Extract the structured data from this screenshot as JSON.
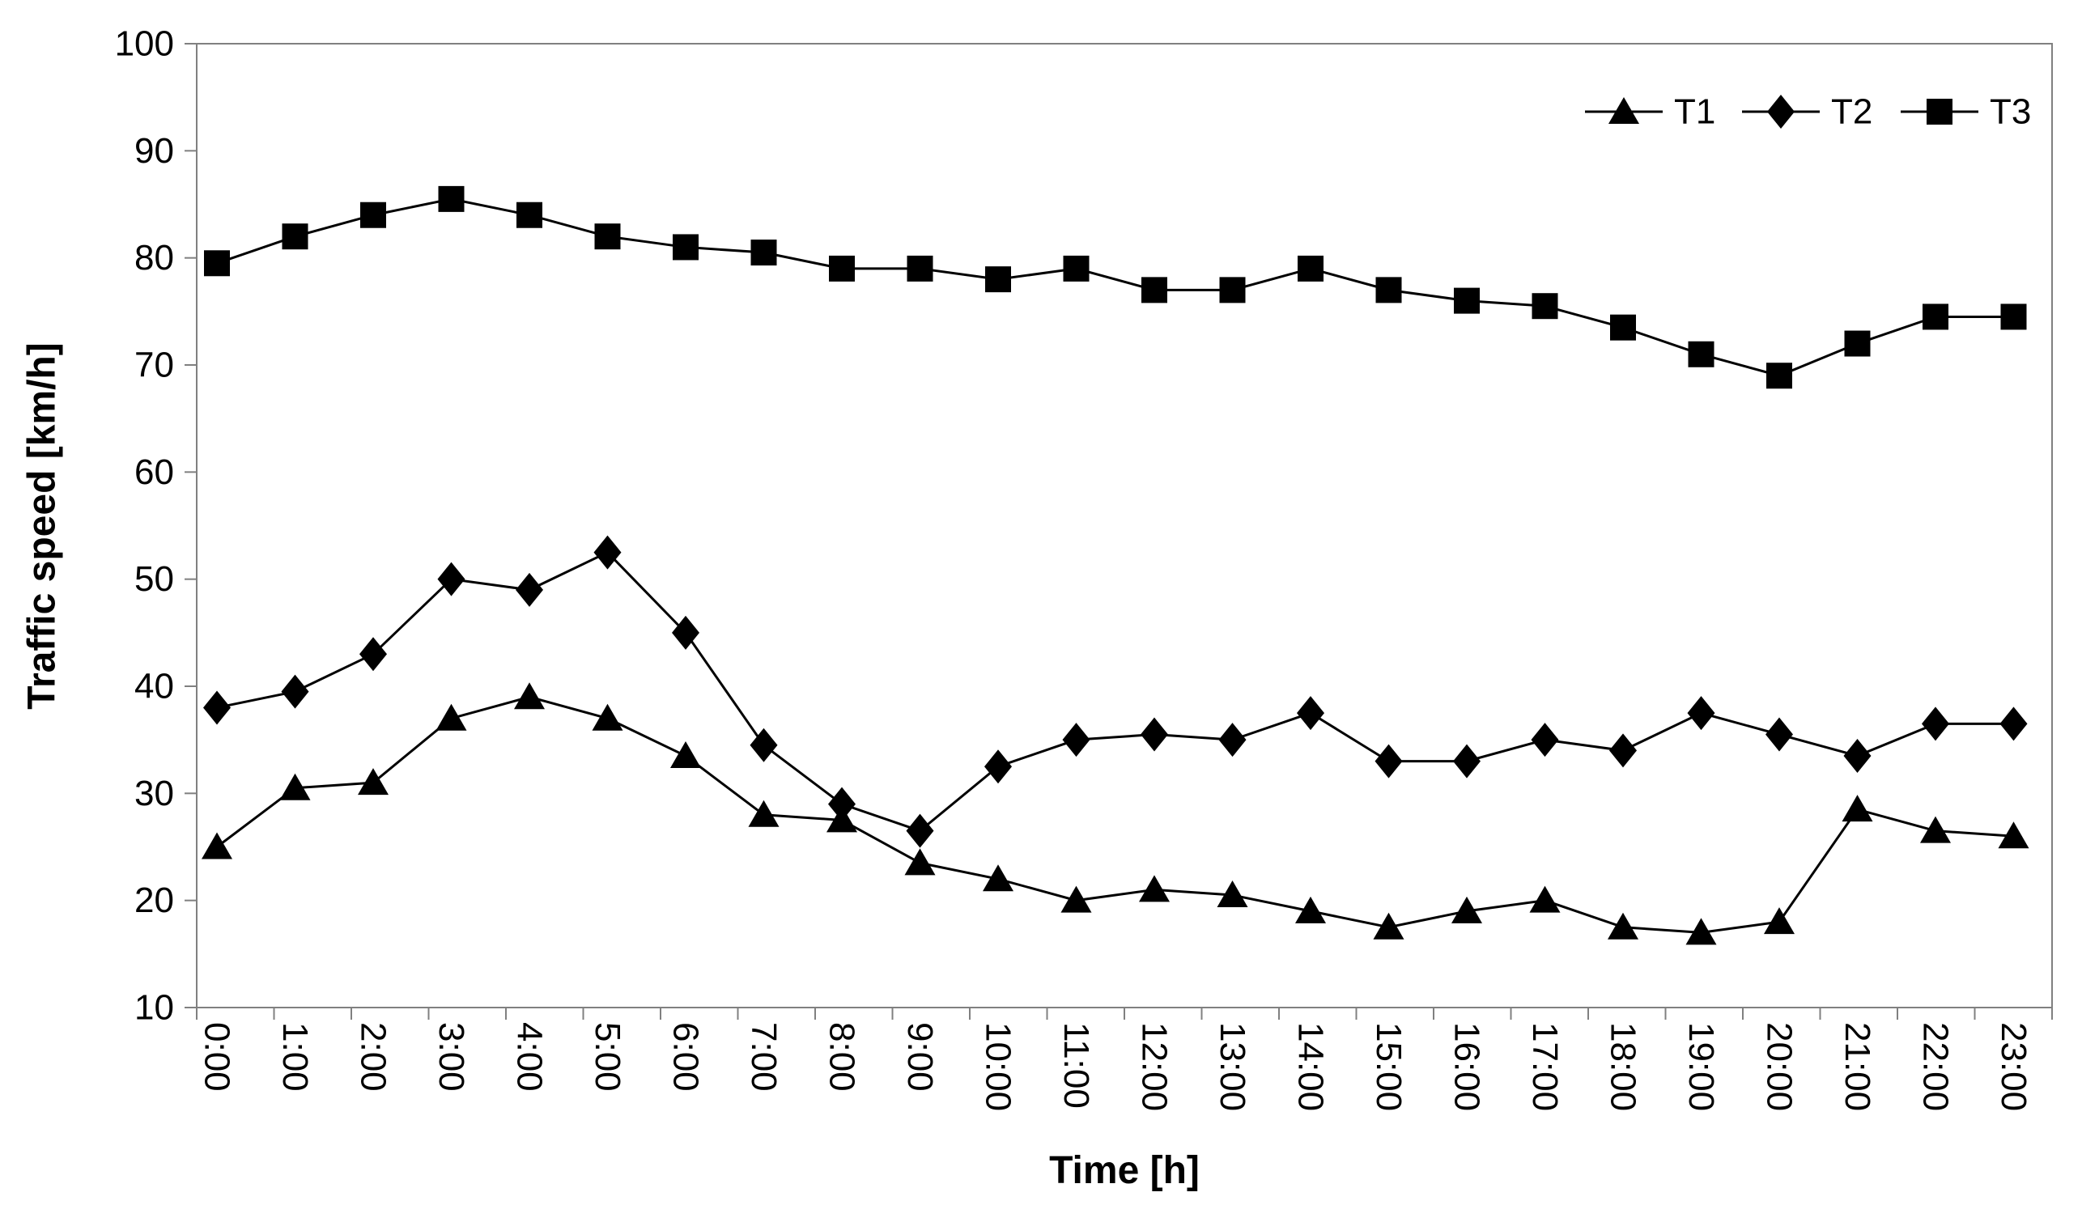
{
  "chart_data": {
    "type": "line",
    "title": "",
    "xlabel": "Time [h]",
    "ylabel": "Traffic speed [km/h]",
    "ylim": [
      10,
      100
    ],
    "yticks": [
      10,
      20,
      30,
      40,
      50,
      60,
      70,
      80,
      90,
      100
    ],
    "grid": false,
    "legend_position": "top-right-inside",
    "categories": [
      "0:00",
      "1:00",
      "2:00",
      "3:00",
      "4:00",
      "5:00",
      "6:00",
      "7:00",
      "8:00",
      "9:00",
      "10:00",
      "11:00",
      "12:00",
      "13:00",
      "14:00",
      "15:00",
      "16:00",
      "17:00",
      "18:00",
      "19:00",
      "20:00",
      "21:00",
      "22:00",
      "23:00"
    ],
    "series": [
      {
        "name": "T1",
        "marker": "triangle",
        "values": [
          25,
          30.5,
          31,
          37,
          39,
          37,
          33.5,
          28,
          27.5,
          23.5,
          22,
          20,
          21,
          20.5,
          19,
          17.5,
          19,
          20,
          17.5,
          17,
          18,
          28.5,
          26.5,
          26
        ]
      },
      {
        "name": "T2",
        "marker": "diamond",
        "values": [
          38,
          39.5,
          43,
          50,
          49,
          52.5,
          45,
          34.5,
          29,
          26.5,
          32.5,
          35,
          35.5,
          35,
          37.5,
          33,
          33,
          35,
          34,
          37.5,
          35.5,
          33.5,
          36.5,
          36.5
        ]
      },
      {
        "name": "T3",
        "marker": "square",
        "values": [
          79.5,
          82,
          84,
          85.5,
          84,
          82,
          81,
          80.5,
          79,
          79,
          78,
          79,
          77,
          77,
          79,
          77,
          76,
          75.5,
          73.5,
          71,
          69,
          72,
          74.5,
          74.5
        ]
      }
    ],
    "colors": {
      "series": "#000000",
      "axis": "#808080",
      "text": "#000000",
      "background": "#ffffff"
    }
  }
}
